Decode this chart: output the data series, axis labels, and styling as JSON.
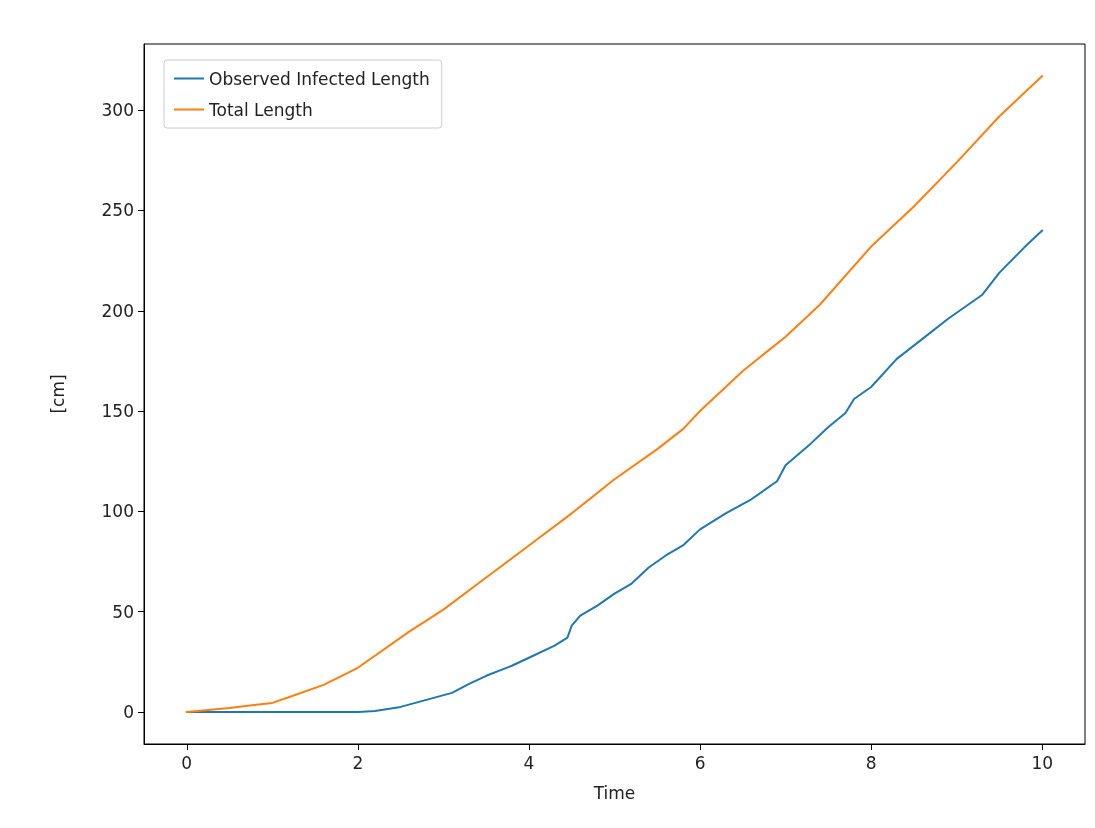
{
  "chart_data": {
    "type": "line",
    "xlabel": "Time",
    "ylabel": "[cm]",
    "xlim": [
      -0.5,
      10.5
    ],
    "ylim": [
      -16,
      333
    ],
    "xticks": [
      0,
      2,
      4,
      6,
      8,
      10
    ],
    "yticks": [
      0,
      50,
      100,
      150,
      200,
      250,
      300
    ],
    "grid": false,
    "legend": "top left",
    "marker": "none",
    "line_style": "solid",
    "series": [
      {
        "name": "Observed Infected Length",
        "color": "#1f77b4",
        "x": [
          0,
          0.5,
          1,
          1.5,
          2,
          2.2,
          2.5,
          2.8,
          3.1,
          3.3,
          3.5,
          3.8,
          4,
          4.3,
          4.45,
          4.5,
          4.6,
          4.8,
          5,
          5.2,
          5.4,
          5.6,
          5.8,
          6,
          6.3,
          6.6,
          6.9,
          7,
          7.3,
          7.5,
          7.7,
          7.8,
          8,
          8.3,
          8.6,
          8.9,
          9.1,
          9.3,
          9.5,
          9.8,
          10
        ],
        "values": [
          0,
          0,
          0,
          0,
          0,
          0.5,
          2.5,
          6,
          9.5,
          14,
          18,
          23,
          27,
          33,
          37,
          43,
          48,
          53,
          59,
          64,
          72,
          78,
          83,
          91,
          99,
          106,
          115,
          123,
          134,
          142,
          149,
          156,
          162,
          176,
          186,
          196,
          202,
          208,
          219,
          232,
          240
        ]
      },
      {
        "name": "Total Length",
        "color": "#ff7f0e",
        "x": [
          0,
          0.5,
          1,
          1.2,
          1.6,
          2,
          2.6,
          3,
          3.5,
          4,
          4.5,
          5,
          5.5,
          5.8,
          6,
          6.5,
          7,
          7.4,
          8,
          8.5,
          9,
          9.5,
          10
        ],
        "values": [
          0,
          2,
          4.5,
          7.4,
          13.5,
          22,
          40,
          51,
          67,
          83,
          99,
          116,
          131,
          141,
          150,
          170,
          187,
          203,
          232,
          252,
          274,
          297,
          317
        ]
      }
    ]
  }
}
